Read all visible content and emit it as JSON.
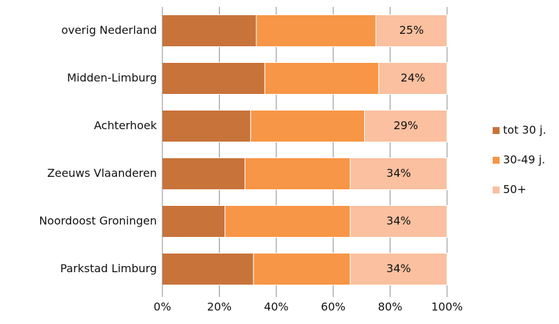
{
  "chart_data": {
    "type": "stacked-barh",
    "categories": [
      "overig Nederland",
      "Midden-Limburg",
      "Achterhoek",
      "Zeeuws Vlaanderen",
      "Noordoost Groningen",
      "Parkstad Limburg"
    ],
    "series": [
      {
        "name": "tot 30 j.",
        "color": "#c8733a",
        "values": [
          33,
          36,
          31,
          29,
          22,
          32
        ]
      },
      {
        "name": "30-49 j.",
        "color": "#f79646",
        "values": [
          42,
          40,
          40,
          37,
          44,
          34
        ]
      },
      {
        "name": "50+",
        "color": "#fac09f",
        "values": [
          25,
          24,
          29,
          34,
          34,
          34
        ],
        "value_labels": [
          "25%",
          "24%",
          "29%",
          "34%",
          "34%",
          "34%"
        ]
      }
    ],
    "xlim": [
      0,
      100
    ],
    "xticks": [
      {
        "value": 0,
        "label": "0%"
      },
      {
        "value": 20,
        "label": "20%"
      },
      {
        "value": 40,
        "label": "40%"
      },
      {
        "value": 60,
        "label": "60%"
      },
      {
        "value": 80,
        "label": "80%"
      },
      {
        "value": 100,
        "label": "100%"
      }
    ],
    "grid": true
  }
}
